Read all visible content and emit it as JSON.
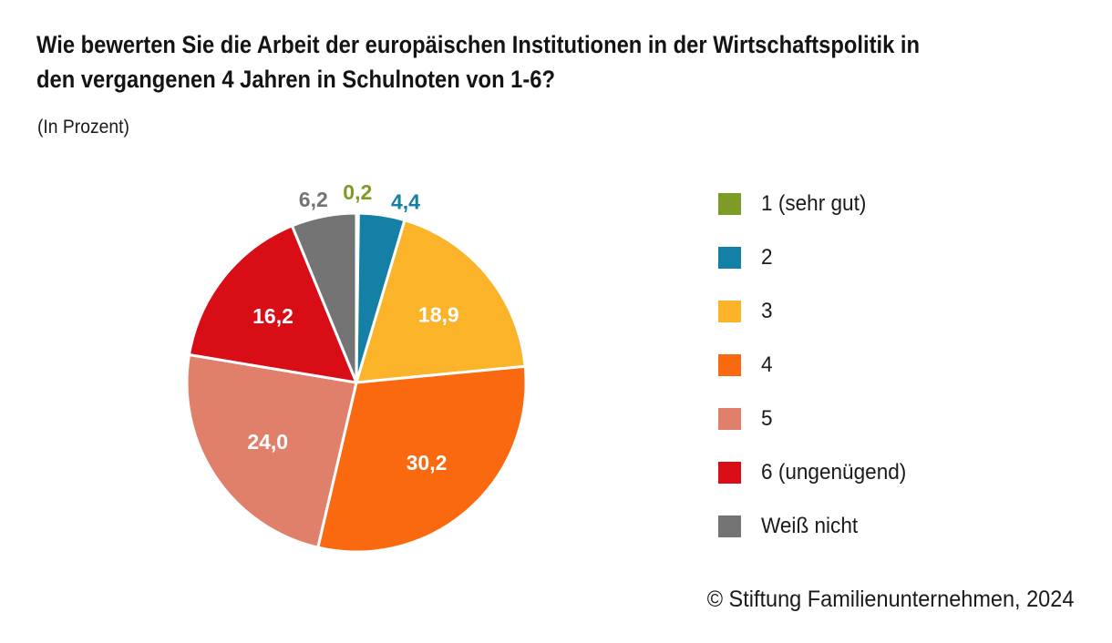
{
  "header": {
    "title_lines": [
      "Wie bewerten Sie die Arbeit der europäischen Institutionen in der Wirtschaftspolitik in",
      "den vergangenen 4 Jahren in Schulnoten von 1-6?"
    ],
    "subtitle": "(In Prozent)"
  },
  "source": "© Stiftung Familienunternehmen, 2024",
  "chart_data": {
    "type": "pie",
    "title": "Wie bewerten Sie die Arbeit der europäischen Institutionen in der Wirtschaftspolitik in den vergangenen 4 Jahren in Schulnoten von 1-6?",
    "unit": "Prozent",
    "start_angle_deg": 0,
    "direction": "clockwise",
    "legend_position": "right",
    "slices": [
      {
        "legend_label": "1 (sehr gut)",
        "value": 0.2,
        "display": "0,2",
        "color": "#7C9B27",
        "label_placement": "outside"
      },
      {
        "legend_label": "2",
        "value": 4.4,
        "display": "4,4",
        "color": "#1480A6",
        "label_placement": "outside"
      },
      {
        "legend_label": "3",
        "value": 18.9,
        "display": "18,9",
        "color": "#FBB429",
        "label_placement": "inside"
      },
      {
        "legend_label": "4",
        "value": 30.2,
        "display": "30,2",
        "color": "#FA690F",
        "label_placement": "inside"
      },
      {
        "legend_label": "5",
        "value": 24.0,
        "display": "24,0",
        "color": "#E0806B",
        "label_placement": "inside"
      },
      {
        "legend_label": "6 (ungenügend)",
        "value": 16.2,
        "display": "16,2",
        "color": "#D90D15",
        "label_placement": "inside"
      },
      {
        "legend_label": "Weiß nicht",
        "value": 6.2,
        "display": "6,2",
        "color": "#747474",
        "label_placement": "outside"
      }
    ]
  }
}
